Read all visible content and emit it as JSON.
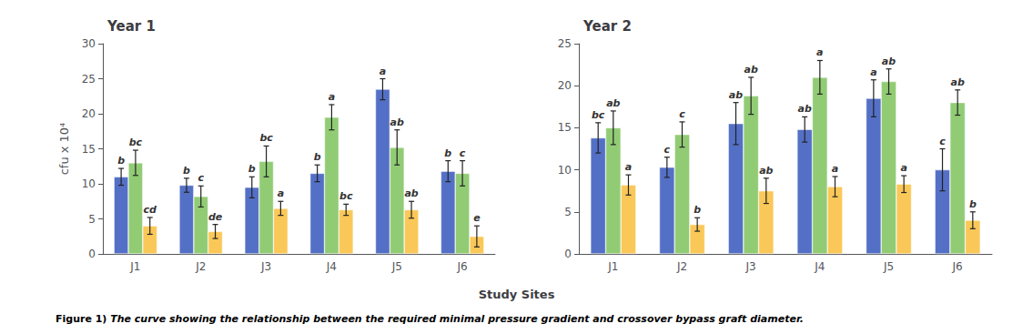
{
  "chart_data": [
    {
      "type": "bar",
      "title": "Year 1",
      "ylabel": "cfu x 10⁴",
      "categories": [
        "J1",
        "J2",
        "J3",
        "J4",
        "J5",
        "J6"
      ],
      "ylim": [
        0,
        30
      ],
      "yticks": [
        0,
        5,
        10,
        15,
        20,
        25,
        30
      ],
      "grid": false,
      "series": [
        {
          "values": [
            11.0,
            9.8,
            9.5,
            11.5,
            23.5,
            11.8
          ],
          "errors": [
            1.2,
            1.0,
            1.5,
            1.2,
            1.5,
            1.5
          ],
          "annotations": [
            "b",
            "b",
            "b",
            "b",
            "a",
            "b"
          ]
        },
        {
          "values": [
            13.0,
            8.2,
            13.2,
            19.5,
            15.2,
            11.5
          ],
          "errors": [
            1.8,
            1.5,
            2.2,
            1.8,
            2.5,
            1.8
          ],
          "annotations": [
            "bc",
            "c",
            "bc",
            "a",
            "ab",
            "c"
          ]
        },
        {
          "values": [
            4.0,
            3.2,
            6.5,
            6.3,
            6.3,
            2.5
          ],
          "errors": [
            1.2,
            1.0,
            1.0,
            0.8,
            1.2,
            1.5
          ],
          "annotations": [
            "cd",
            "de",
            "a",
            "bc",
            "ab",
            "e"
          ]
        }
      ]
    },
    {
      "type": "bar",
      "title": "Year 2",
      "categories": [
        "J1",
        "J2",
        "J3",
        "J4",
        "J5",
        "J6"
      ],
      "ylim": [
        0,
        25
      ],
      "yticks": [
        0,
        5,
        10,
        15,
        20,
        25
      ],
      "grid": false,
      "series": [
        {
          "values": [
            13.8,
            10.3,
            15.5,
            14.8,
            18.5,
            10.0
          ],
          "errors": [
            1.8,
            1.2,
            2.5,
            1.5,
            2.2,
            2.5
          ],
          "annotations": [
            "bc",
            "c",
            "ab",
            "ab",
            "a",
            "c"
          ]
        },
        {
          "values": [
            15.0,
            14.2,
            18.8,
            21.0,
            20.5,
            18.0
          ],
          "errors": [
            2.0,
            1.5,
            2.2,
            2.0,
            1.5,
            1.5
          ],
          "annotations": [
            "ab",
            "c",
            "ab",
            "a",
            "ab",
            "ab"
          ]
        },
        {
          "values": [
            8.2,
            3.5,
            7.5,
            8.0,
            8.3,
            4.0
          ],
          "errors": [
            1.2,
            0.8,
            1.5,
            1.2,
            1.0,
            1.0
          ],
          "annotations": [
            "a",
            "b",
            "ab",
            "a",
            "a",
            "b"
          ]
        }
      ]
    }
  ],
  "xlabel": "Study Sites",
  "caption": [
    "Figure 1)",
    "The curve showing the relationship between the required minimal pressure gradient and crossover bypass graft diameter."
  ]
}
